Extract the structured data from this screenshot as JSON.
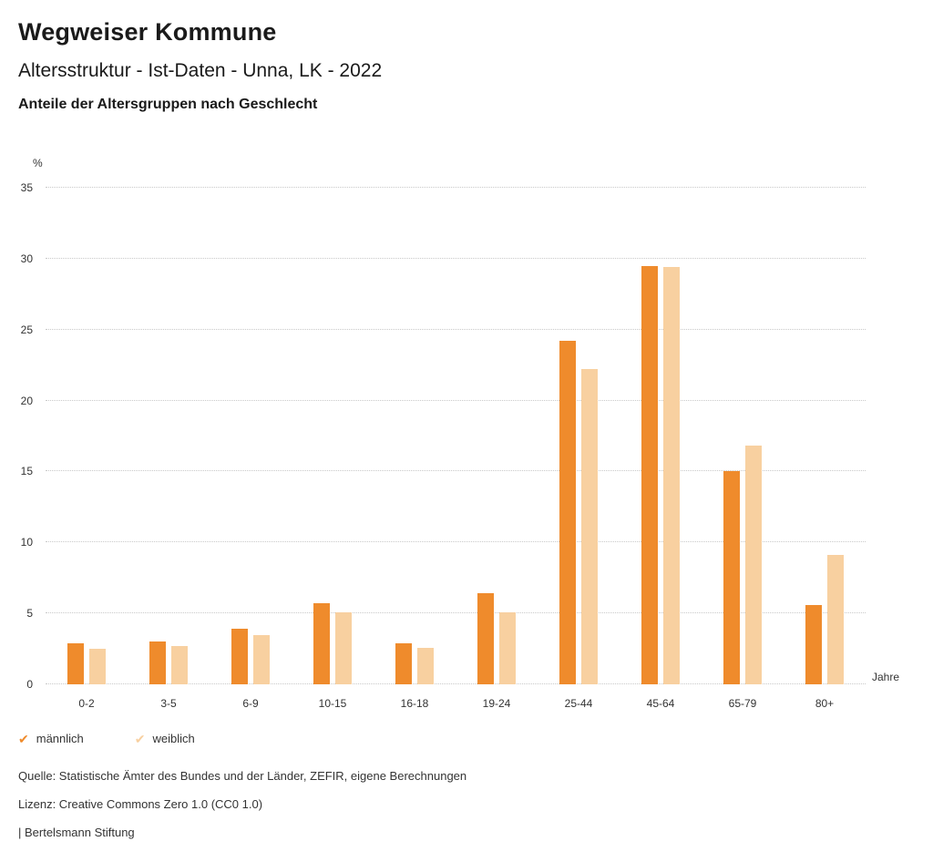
{
  "header": {
    "title": "Wegweiser Kommune",
    "subtitle": "Altersstruktur - Ist-Daten - Unna, LK - 2022",
    "chart_heading": "Anteile der Altersgruppen nach Geschlecht"
  },
  "chart_data": {
    "type": "bar",
    "title": "Anteile der Altersgruppen nach Geschlecht",
    "categories": [
      "0-2",
      "3-5",
      "6-9",
      "10-15",
      "16-18",
      "19-24",
      "25-44",
      "45-64",
      "65-79",
      "80+"
    ],
    "series": [
      {
        "name": "männlich",
        "color": "#ef8b2c",
        "values": [
          2.9,
          3.0,
          3.9,
          5.7,
          2.9,
          6.4,
          24.2,
          29.5,
          15.0,
          5.6
        ]
      },
      {
        "name": "weiblich",
        "color": "#f8d0a0",
        "values": [
          2.5,
          2.7,
          3.5,
          5.1,
          2.6,
          5.1,
          22.2,
          29.4,
          16.8,
          9.1
        ]
      }
    ],
    "xlabel": "Jahre",
    "ylabel": "%",
    "ylim": [
      0,
      35
    ],
    "yticks": [
      0,
      5,
      10,
      15,
      20,
      25,
      30,
      35
    ],
    "grid": true,
    "legend_position": "bottom"
  },
  "footer": {
    "source": "Quelle: Statistische Ämter des Bundes und der Länder, ZEFIR, eigene Berechnungen",
    "license": "Lizenz: Creative Commons Zero 1.0 (CC0 1.0)",
    "attribution": "| Bertelsmann Stiftung"
  }
}
